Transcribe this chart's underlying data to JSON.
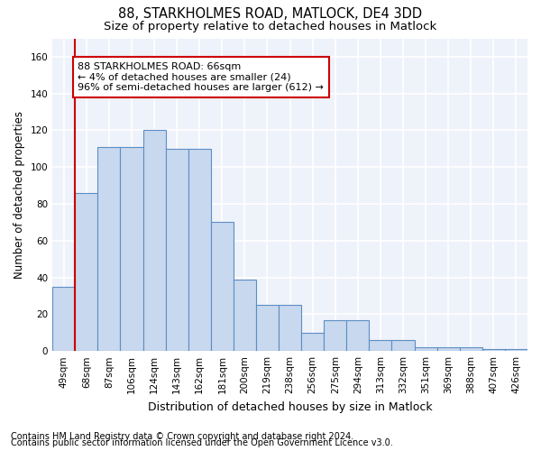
{
  "title": "88, STARKHOLMES ROAD, MATLOCK, DE4 3DD",
  "subtitle": "Size of property relative to detached houses in Matlock",
  "xlabel": "Distribution of detached houses by size in Matlock",
  "ylabel": "Number of detached properties",
  "footer1": "Contains HM Land Registry data © Crown copyright and database right 2024.",
  "footer2": "Contains public sector information licensed under the Open Government Licence v3.0.",
  "categories": [
    "49sqm",
    "68sqm",
    "87sqm",
    "106sqm",
    "124sqm",
    "143sqm",
    "162sqm",
    "181sqm",
    "200sqm",
    "219sqm",
    "238sqm",
    "256sqm",
    "275sqm",
    "294sqm",
    "313sqm",
    "332sqm",
    "351sqm",
    "369sqm",
    "388sqm",
    "407sqm",
    "426sqm"
  ],
  "values": [
    35,
    86,
    111,
    111,
    120,
    110,
    110,
    70,
    39,
    25,
    25,
    10,
    17,
    17,
    6,
    6,
    2,
    2,
    2,
    1,
    1
  ],
  "bar_color": "#c8d8ee",
  "bar_edge_color": "#5b8ec4",
  "ylim": [
    0,
    170
  ],
  "yticks": [
    0,
    20,
    40,
    60,
    80,
    100,
    120,
    140,
    160
  ],
  "property_label": "88 STARKHOLMES ROAD: 66sqm",
  "annotation_line1": "← 4% of detached houses are smaller (24)",
  "annotation_line2": "96% of semi-detached houses are larger (612) →",
  "red_line_x": 0.47,
  "red_line_color": "#cc0000",
  "annotation_box_facecolor": "#ffffff",
  "annotation_box_edgecolor": "#cc0000",
  "background_color": "#ffffff",
  "plot_bg_color": "#eef2fa",
  "grid_color": "#ffffff",
  "title_fontsize": 10.5,
  "subtitle_fontsize": 9.5,
  "xlabel_fontsize": 9,
  "ylabel_fontsize": 8.5,
  "tick_fontsize": 7.5,
  "annot_fontsize": 8,
  "footer_fontsize": 7
}
